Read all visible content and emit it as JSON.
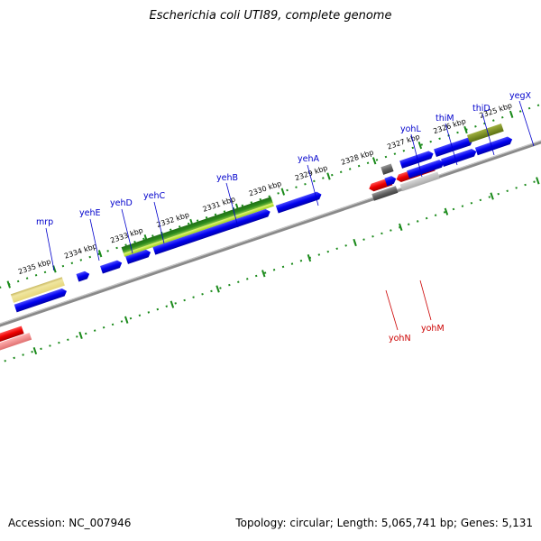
{
  "title": "Escherichia coli UTI89, complete genome",
  "footer": {
    "accession": "Accession: NC_007946",
    "summary": "Topology: circular; Length: 5,065,741 bp; Genes: 5,131"
  },
  "colors": {
    "forward_cds": "#0000ee",
    "reverse_cds": "#ee0000",
    "gray_feature": "#606060",
    "rna_green": "#2e8b1e",
    "pseudo_yellow": "#e8dc8a",
    "backbone": "#888888",
    "tick": "#1a8a1a",
    "forward_label": "#0000cc",
    "reverse_label": "#cc0000"
  },
  "kbp_labels": [
    "2335 kbp",
    "2334 kbp",
    "2333 kbp",
    "2332 kbp",
    "2331 kbp",
    "2330 kbp",
    "2329 kbp",
    "2328 kbp",
    "2327 kbp",
    "2326 kbp",
    "2325 kbp"
  ],
  "gene_labels_forward": [
    "mrp",
    "yehE",
    "yehD",
    "yehC",
    "yehB",
    "yehA",
    "yohL",
    "thiM",
    "thiD",
    "yegX"
  ],
  "gene_labels_reverse": [
    "yohN",
    "yohM"
  ]
}
